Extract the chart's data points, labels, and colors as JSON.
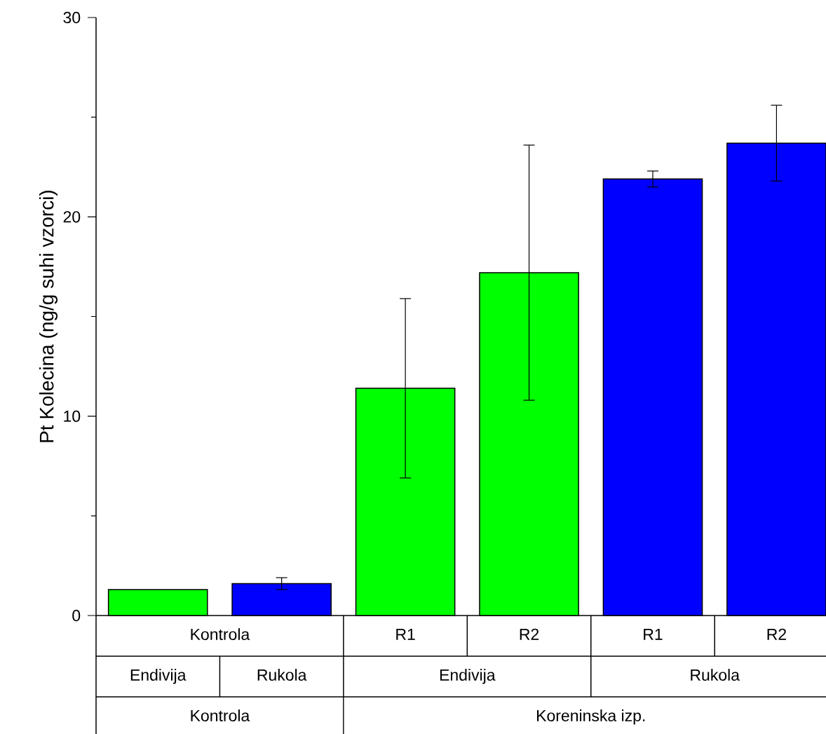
{
  "chart_data": {
    "type": "bar",
    "ylabel": "Pt Kolecina (ng/g suhi vzorci)",
    "categories": [
      "Kontrola",
      null,
      "R1",
      "R2",
      "R1",
      "R2"
    ],
    "values": [
      1.3,
      1.6,
      11.4,
      17.2,
      21.9,
      23.7
    ],
    "errors": [
      null,
      0.3,
      4.5,
      6.4,
      0.4,
      1.9
    ],
    "colors": [
      "#00ff00",
      "#0000ff",
      "#00ff00",
      "#00ff00",
      "#0000ff",
      "#0000ff"
    ],
    "ylim": [
      0,
      30
    ],
    "yticks": [
      0,
      10,
      20,
      30
    ],
    "annotations": [
      "Endivija",
      "Rukola",
      "Endivija",
      "Rukola",
      "Kontrola",
      "Koreninska izp."
    ]
  }
}
